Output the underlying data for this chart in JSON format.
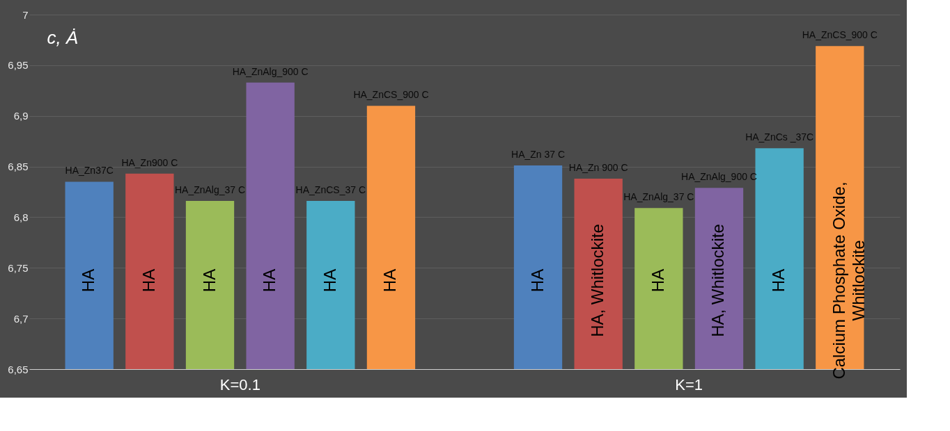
{
  "chart_data": {
    "type": "bar",
    "ylabel": "c, Ȧ",
    "categories": [
      "K=0.1",
      "K=1"
    ],
    "series": [
      {
        "color": "#4f81bd",
        "values": [
          6.835,
          6.851
        ]
      },
      {
        "color": "#c0504d",
        "values": [
          6.843,
          6.838
        ]
      },
      {
        "color": "#9bbb59",
        "values": [
          6.816,
          6.809
        ]
      },
      {
        "color": "#8064a2",
        "values": [
          6.933,
          6.829
        ]
      },
      {
        "color": "#4bacc6",
        "values": [
          6.816,
          6.868
        ]
      },
      {
        "color": "#f79646",
        "values": [
          6.91,
          6.969
        ]
      }
    ],
    "ylim": [
      6.65,
      7
    ],
    "yticks": [
      {
        "value": 6.65,
        "label": "6,65"
      },
      {
        "value": 6.7,
        "label": "6,7"
      },
      {
        "value": 6.75,
        "label": "6,75"
      },
      {
        "value": 6.8,
        "label": "6,8"
      },
      {
        "value": 6.85,
        "label": "6,85"
      },
      {
        "value": 6.9,
        "label": "6,9"
      },
      {
        "value": 6.95,
        "label": "6,95"
      },
      {
        "value": 7,
        "label": "7"
      }
    ],
    "grid": "y",
    "annotations": [
      "HA_Zn37C",
      "HA_Zn900 C",
      "HA_ZnAlg_37 C",
      "HA_ZnAlg_900 C",
      "HA_ZnCS_37 C",
      "HA_ZnCS_900 C",
      "HA_Zn 37 C",
      "HA_Zn 900 C",
      "HA_ZnAlg_37 C",
      "HA_ZnAlg_900 C",
      "HA_ZnCs _37C",
      "HA_ZnCS_900 C",
      "HA",
      "HA",
      "HA",
      "HA",
      "HA",
      "HA",
      "HA",
      "HA, Whitlockite",
      "HA",
      "HA, Whitlockite",
      "HA",
      "Calcium Phosphate Oxide,\nWhitlockite"
    ]
  }
}
